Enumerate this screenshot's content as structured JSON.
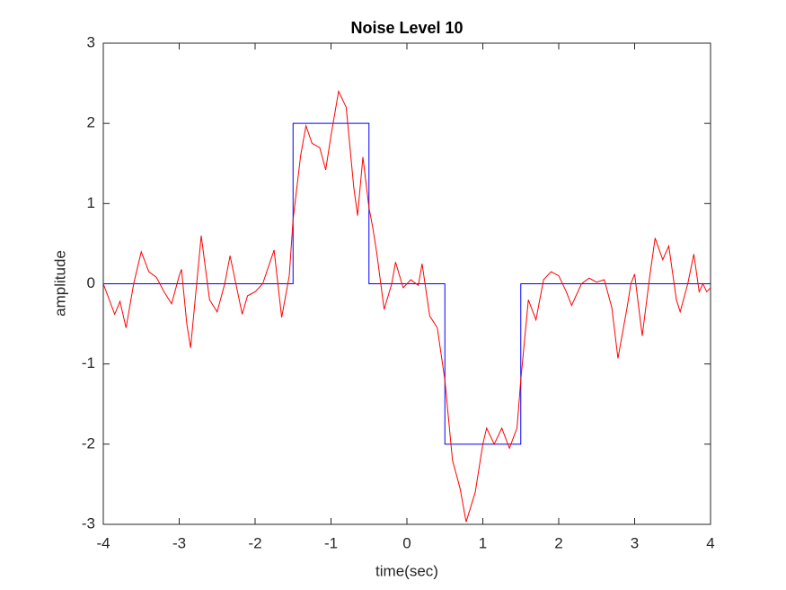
{
  "chart_data": {
    "type": "line",
    "title": "Noise Level 10",
    "x_label": "time(sec)",
    "y_label": "amplitude",
    "xlim": [
      -4,
      4
    ],
    "ylim": [
      -3,
      3
    ],
    "xticks": [
      -4,
      -3,
      -2,
      -1,
      0,
      1,
      2,
      3,
      4
    ],
    "yticks": [
      -3,
      -2,
      -1,
      0,
      1,
      2,
      3
    ],
    "grid": false,
    "series": [
      {
        "color": "#0000ff",
        "x": [
          -4,
          -1.5,
          -1.5,
          -0.5,
          -0.5,
          0.5,
          0.5,
          1.5,
          1.5,
          4
        ],
        "values": [
          0,
          0,
          2,
          2,
          0,
          0,
          -2,
          -2,
          0,
          0
        ]
      },
      {
        "color": "#ff0000",
        "x": [
          -4,
          -3.85,
          -3.78,
          -3.7,
          -3.6,
          -3.5,
          -3.4,
          -3.3,
          -3.2,
          -3.1,
          -3.0,
          -2.97,
          -2.9,
          -2.85,
          -2.8,
          -2.71,
          -2.6,
          -2.5,
          -2.4,
          -2.33,
          -2.17,
          -2.1,
          -2.0,
          -1.9,
          -1.75,
          -1.65,
          -1.55,
          -1.5,
          -1.4,
          -1.33,
          -1.25,
          -1.15,
          -1.07,
          -1.0,
          -0.9,
          -0.8,
          -0.7,
          -0.65,
          -0.58,
          -0.5,
          -0.45,
          -0.4,
          -0.3,
          -0.2,
          -0.15,
          -0.05,
          0.05,
          0.15,
          0.2,
          0.3,
          0.4,
          0.5,
          0.6,
          0.7,
          0.78,
          0.9,
          1.0,
          1.05,
          1.15,
          1.25,
          1.35,
          1.45,
          1.5,
          1.6,
          1.7,
          1.8,
          1.9,
          2.0,
          2.1,
          2.17,
          2.3,
          2.4,
          2.5,
          2.6,
          2.7,
          2.78,
          2.9,
          2.95,
          3.0,
          3.1,
          3.2,
          3.27,
          3.37,
          3.45,
          3.55,
          3.6,
          3.7,
          3.78,
          3.85,
          3.9,
          3.95,
          4.0
        ],
        "values": [
          0,
          -0.38,
          -0.22,
          -0.55,
          0.0,
          0.4,
          0.15,
          0.08,
          -0.1,
          -0.25,
          0.1,
          0.18,
          -0.5,
          -0.8,
          -0.3,
          0.6,
          -0.2,
          -0.35,
          0.0,
          0.35,
          -0.38,
          -0.15,
          -0.1,
          0.0,
          0.42,
          -0.42,
          0.1,
          0.8,
          1.6,
          1.97,
          1.75,
          1.7,
          1.42,
          1.85,
          2.4,
          2.2,
          1.2,
          0.85,
          1.58,
          0.95,
          0.7,
          0.4,
          -0.32,
          0.0,
          0.27,
          -0.05,
          0.05,
          -0.02,
          0.25,
          -0.4,
          -0.55,
          -1.2,
          -2.2,
          -2.55,
          -2.97,
          -2.6,
          -2.0,
          -1.8,
          -2.0,
          -1.8,
          -2.05,
          -1.8,
          -1.2,
          -0.2,
          -0.45,
          0.05,
          0.15,
          0.1,
          -0.1,
          -0.27,
          0.0,
          0.07,
          0.02,
          0.05,
          -0.3,
          -0.93,
          -0.3,
          0.0,
          0.12,
          -0.65,
          0.1,
          0.57,
          0.3,
          0.47,
          -0.2,
          -0.35,
          0.0,
          0.37,
          -0.1,
          0.0,
          -0.1,
          -0.05
        ]
      }
    ]
  }
}
